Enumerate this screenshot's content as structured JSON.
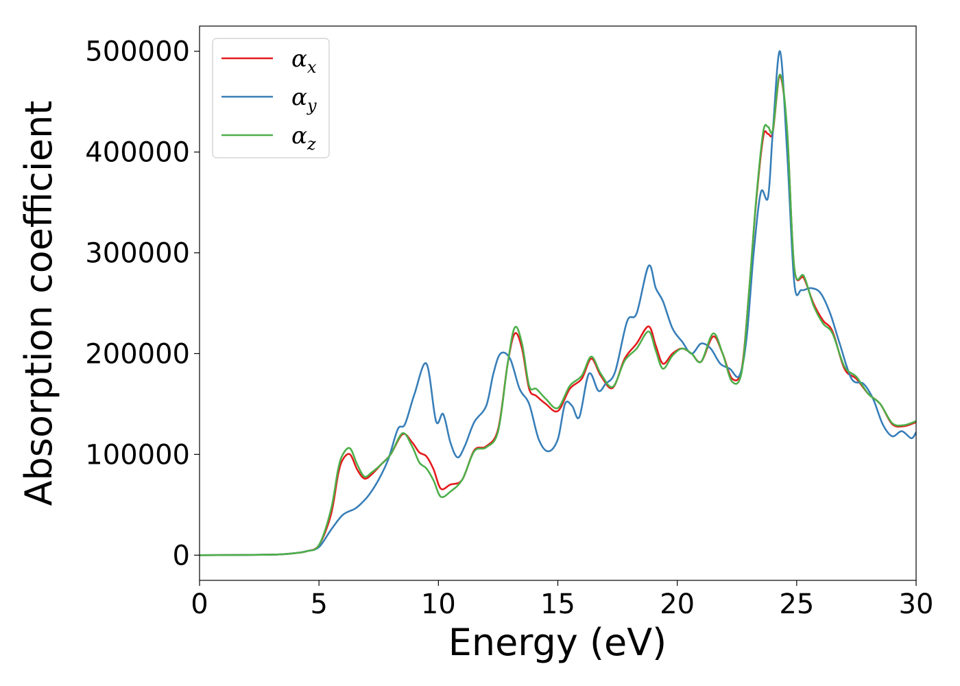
{
  "chart_data": {
    "type": "line",
    "title": "",
    "xlabel": "Energy (eV)",
    "ylabel": "Absorption coefficient",
    "xlim": [
      0,
      30
    ],
    "ylim": [
      -25000,
      525000
    ],
    "xticks": [
      0,
      5,
      10,
      15,
      20,
      25,
      30
    ],
    "yticks": [
      0,
      100000,
      200000,
      300000,
      400000,
      500000
    ],
    "grid": false,
    "legend_position": "top-left",
    "series": [
      {
        "name": "αx",
        "name_base": "α",
        "name_sub": "x",
        "color": "#e41a1c",
        "x": [
          0,
          3,
          4,
          4.5,
          5,
          5.5,
          5.8,
          6.0,
          6.3,
          6.6,
          6.9,
          7.2,
          7.6,
          8.0,
          8.5,
          8.9,
          9.2,
          9.5,
          9.8,
          10.1,
          10.5,
          11.0,
          11.5,
          12.0,
          12.5,
          12.9,
          13.2,
          13.5,
          13.8,
          14.1,
          14.5,
          15.0,
          15.5,
          16.0,
          16.4,
          16.8,
          17.3,
          17.8,
          18.3,
          18.8,
          19.1,
          19.4,
          19.8,
          20.2,
          20.6,
          21.0,
          21.5,
          21.9,
          22.3,
          22.7,
          23.0,
          23.3,
          23.6,
          23.8,
          24.0,
          24.3,
          24.6,
          24.9,
          25.3,
          25.7,
          26.1,
          26.5,
          27.0,
          27.5,
          28.0,
          28.5,
          29.0,
          29.5,
          30.0
        ],
        "y": [
          0,
          500,
          2000,
          4000,
          10000,
          40000,
          80000,
          95000,
          100000,
          85000,
          76000,
          80000,
          90000,
          100000,
          120000,
          112000,
          102000,
          98000,
          85000,
          66000,
          70000,
          75000,
          104000,
          108000,
          125000,
          190000,
          220000,
          205000,
          165000,
          158000,
          150000,
          143000,
          165000,
          175000,
          195000,
          178000,
          166000,
          195000,
          210000,
          227000,
          208000,
          190000,
          200000,
          205000,
          200000,
          192000,
          217000,
          200000,
          175000,
          185000,
          260000,
          350000,
          415000,
          418000,
          420000,
          475000,
          420000,
          285000,
          275000,
          250000,
          233000,
          222000,
          185000,
          175000,
          160000,
          150000,
          130000,
          128000,
          132000
        ]
      },
      {
        "name": "αy",
        "name_base": "α",
        "name_sub": "y",
        "color": "#377eb8",
        "x": [
          0,
          3,
          4,
          4.5,
          5,
          5.5,
          6.0,
          6.5,
          6.8,
          7.1,
          7.5,
          7.9,
          8.3,
          8.6,
          9.0,
          9.5,
          9.9,
          10.2,
          10.5,
          10.8,
          11.1,
          11.5,
          12.0,
          12.3,
          12.6,
          13.0,
          13.4,
          13.8,
          14.2,
          14.6,
          15.0,
          15.3,
          15.6,
          15.9,
          16.3,
          16.7,
          17.0,
          17.4,
          17.9,
          18.3,
          18.8,
          19.1,
          19.4,
          19.8,
          20.2,
          20.6,
          21.0,
          21.4,
          21.8,
          22.2,
          22.6,
          22.9,
          23.2,
          23.5,
          23.8,
          24.0,
          24.3,
          24.6,
          24.9,
          25.2,
          25.6,
          26.0,
          26.4,
          26.8,
          27.3,
          27.8,
          28.2,
          28.6,
          29.0,
          29.4,
          29.8,
          30.0
        ],
        "y": [
          0,
          500,
          2000,
          4000,
          8000,
          25000,
          40000,
          46000,
          52000,
          60000,
          75000,
          95000,
          125000,
          130000,
          160000,
          190000,
          133000,
          140000,
          112000,
          97000,
          108000,
          132000,
          148000,
          180000,
          200000,
          195000,
          165000,
          150000,
          115000,
          103000,
          115000,
          150000,
          148000,
          137000,
          180000,
          163000,
          170000,
          182000,
          232000,
          240000,
          287000,
          265000,
          252000,
          225000,
          212000,
          200000,
          210000,
          205000,
          190000,
          185000,
          178000,
          215000,
          300000,
          360000,
          355000,
          420000,
          500000,
          400000,
          270000,
          263000,
          265000,
          260000,
          240000,
          210000,
          175000,
          170000,
          155000,
          130000,
          118000,
          123000,
          116000,
          122000
        ]
      },
      {
        "name": "αz",
        "name_base": "α",
        "name_sub": "z",
        "color": "#4daf4a",
        "x": [
          0,
          3,
          4,
          4.5,
          5,
          5.5,
          5.8,
          6.0,
          6.3,
          6.6,
          6.9,
          7.2,
          7.6,
          8.0,
          8.5,
          8.9,
          9.2,
          9.5,
          9.8,
          10.1,
          10.5,
          11.0,
          11.5,
          12.0,
          12.5,
          12.9,
          13.2,
          13.5,
          13.8,
          14.1,
          14.5,
          15.0,
          15.5,
          16.0,
          16.4,
          16.8,
          17.3,
          17.8,
          18.3,
          18.8,
          19.1,
          19.4,
          19.8,
          20.2,
          20.6,
          21.0,
          21.5,
          21.9,
          22.3,
          22.7,
          23.0,
          23.3,
          23.6,
          23.8,
          24.0,
          24.3,
          24.6,
          24.9,
          25.3,
          25.7,
          26.1,
          26.5,
          27.0,
          27.5,
          28.0,
          28.5,
          29.0,
          29.5,
          30.0
        ],
        "y": [
          0,
          500,
          2000,
          4000,
          10000,
          45000,
          85000,
          100000,
          106000,
          90000,
          78000,
          82000,
          90000,
          100000,
          121000,
          108000,
          92000,
          86000,
          74000,
          58000,
          63000,
          75000,
          103000,
          107000,
          123000,
          190000,
          226000,
          210000,
          168000,
          165000,
          155000,
          146000,
          168000,
          178000,
          197000,
          180000,
          167000,
          193000,
          205000,
          222000,
          203000,
          185000,
          198000,
          205000,
          200000,
          192000,
          220000,
          200000,
          172000,
          182000,
          260000,
          352000,
          420000,
          425000,
          422000,
          477000,
          422000,
          285000,
          277000,
          248000,
          230000,
          220000,
          187000,
          177000,
          160000,
          150000,
          131000,
          129000,
          133000
        ]
      }
    ]
  }
}
